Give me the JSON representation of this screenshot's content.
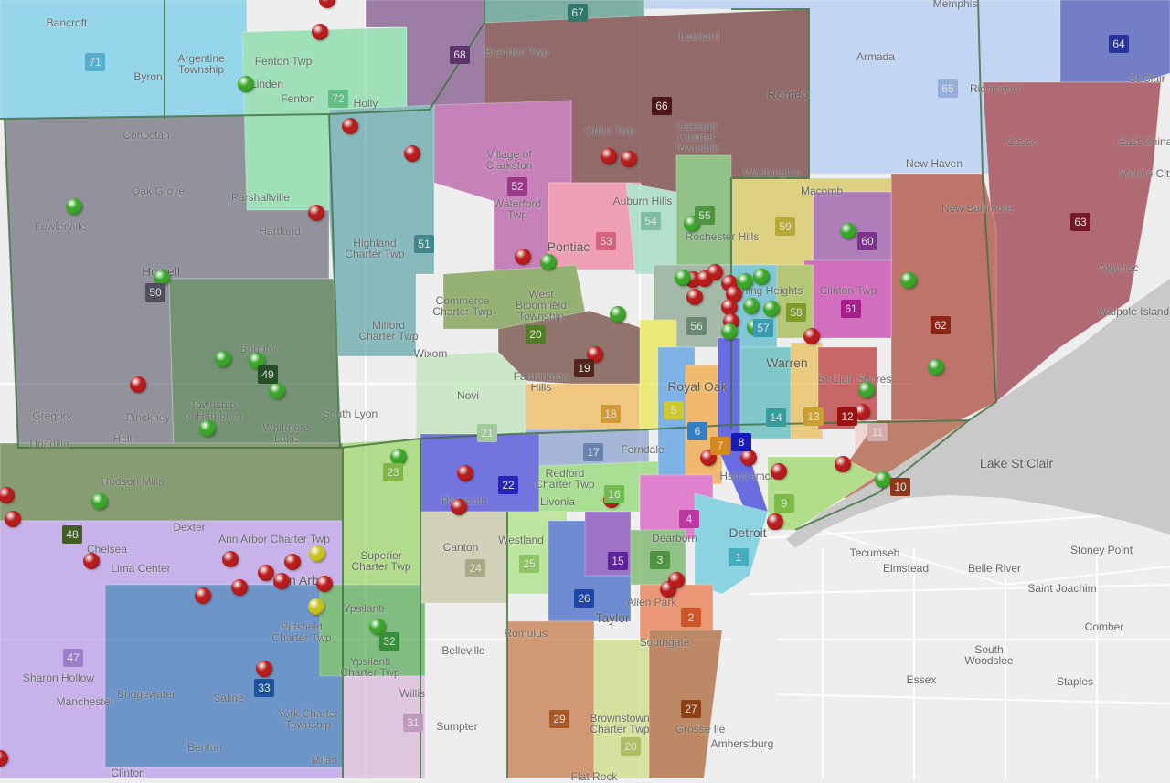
{
  "map": {
    "lake_color": "#c9c9c9",
    "land_color": "#eeeeee",
    "county_border_color": "#3f6f3f",
    "marker_colors": {
      "red": "#b81c1c",
      "green": "#3aa52a",
      "yellow": "#c9c21e"
    }
  },
  "districts": [
    {
      "num": "1",
      "color": "#4fc3d9"
    },
    {
      "num": "2",
      "color": "#e8622c"
    },
    {
      "num": "3",
      "color": "#5aa84a"
    },
    {
      "num": "4",
      "color": "#d63fb8"
    },
    {
      "num": "5",
      "color": "#e8e630"
    },
    {
      "num": "6",
      "color": "#3b8fe0"
    },
    {
      "num": "7",
      "color": "#f29a1f"
    },
    {
      "num": "8",
      "color": "#1a1fd6"
    },
    {
      "num": "9",
      "color": "#8fd44f"
    },
    {
      "num": "10",
      "color": "#a0401c"
    },
    {
      "num": "11",
      "color": "#f2c4c4"
    },
    {
      "num": "12",
      "color": "#b01515"
    },
    {
      "num": "13",
      "color": "#e8b53a"
    },
    {
      "num": "14",
      "color": "#3fb0b0"
    },
    {
      "num": "15",
      "color": "#6a28b0"
    },
    {
      "num": "16",
      "color": "#7fd65a"
    },
    {
      "num": "17",
      "color": "#7a95c8"
    },
    {
      "num": "18",
      "color": "#f0b040"
    },
    {
      "num": "19",
      "color": "#5a2a20"
    },
    {
      "num": "20",
      "color": "#5f8f2a"
    },
    {
      "num": "21",
      "color": "#b8e4b0"
    },
    {
      "num": "22",
      "color": "#2a2ad6"
    },
    {
      "num": "23",
      "color": "#8fd050"
    },
    {
      "num": "24",
      "color": "#c0c098"
    },
    {
      "num": "25",
      "color": "#a0e070"
    },
    {
      "num": "26",
      "color": "#2050c0"
    },
    {
      "num": "27",
      "color": "#a04a14"
    },
    {
      "num": "28",
      "color": "#c8d870"
    },
    {
      "num": "29",
      "color": "#c0652a"
    },
    {
      "num": "31",
      "color": "#d8b0d8"
    },
    {
      "num": "32",
      "color": "#40a040"
    },
    {
      "num": "33",
      "color": "#2060b0"
    },
    {
      "num": "47",
      "color": "#b090e8"
    },
    {
      "num": "48",
      "color": "#4a6a2a"
    },
    {
      "num": "49",
      "color": "#2a5a2a"
    },
    {
      "num": "50",
      "color": "#5a5a6a"
    },
    {
      "num": "51",
      "color": "#4a9aa0"
    },
    {
      "num": "52",
      "color": "#b0409a"
    },
    {
      "num": "53",
      "color": "#f07090"
    },
    {
      "num": "54",
      "color": "#90d8b8"
    },
    {
      "num": "55",
      "color": "#5aa84a"
    },
    {
      "num": "56",
      "color": "#7a9a80"
    },
    {
      "num": "57",
      "color": "#40b0c8"
    },
    {
      "num": "58",
      "color": "#90b030"
    },
    {
      "num": "59",
      "color": "#d0c040"
    },
    {
      "num": "60",
      "color": "#8a3a9a"
    },
    {
      "num": "61",
      "color": "#c020a0"
    },
    {
      "num": "62",
      "color": "#a02a1a"
    },
    {
      "num": "63",
      "color": "#8a1a2a"
    },
    {
      "num": "64",
      "color": "#2a3ab0"
    },
    {
      "num": "65",
      "color": "#a8c8f8"
    },
    {
      "num": "66",
      "color": "#5a1a1a"
    },
    {
      "num": "67",
      "color": "#3a8a7a"
    },
    {
      "num": "68",
      "color": "#6a3a7a"
    },
    {
      "num": "71",
      "color": "#60c8e8"
    },
    {
      "num": "72",
      "color": "#70d898"
    }
  ],
  "places": [
    "Bancroft",
    "Argentine\nTownship",
    "Byron",
    "Fenton Twp",
    "Holly",
    "Brandon Twp",
    "Leonard",
    "Armada",
    "Romeo",
    "St Clair",
    "Cohoctah",
    "Village of\nClarkston",
    "Orion Twp",
    "Oakland\nCharter\nTownship",
    "East China",
    "Casco",
    "Marine City",
    "Oak Grove",
    "Parshallville",
    "Washington",
    "Macomb",
    "New Haven",
    "Waterford\nTwp",
    "Fowlerville",
    "Hartland",
    "Highland\nCharter Twp",
    "Auburn Hills",
    "Rochester Hills",
    "New Baltimore",
    "Pontiac",
    "Algonac",
    "Howell",
    "Commerce\nCharter Twp",
    "West\nBloomfield\nTownship",
    "Sterling Heights",
    "Clinton Twp",
    "Walpole Island",
    "Milford\nCharter Twp",
    "Brighton",
    "Wixom",
    "Farmington\nHills",
    "Warren",
    "St Clair Shores",
    "Royal Oak",
    "Novi",
    "Gregory",
    "Pinckney",
    "Township\nof Hamburg",
    "Whitmore\nLake",
    "South Lyon",
    "Hell",
    "Unadilla",
    "Ferndale",
    "Lake St Clair",
    "Redford\nCharter Twp",
    "Hamtramck",
    "Hudson Mills",
    "Plymouth",
    "Livonia",
    "Detroit",
    "Dexter",
    "Ann Arbor Charter Twp",
    "Chelsea",
    "Canton",
    "Westland",
    "Dearborn",
    "Superior\nCharter Twp",
    "Lima Center",
    "Tecumseh",
    "Elmstead",
    "Belle River",
    "Stoney Point",
    "Saint Joachim",
    "Ann Arbor",
    "Ypsilanti",
    "Allen Park",
    "Taylor",
    "Romulus",
    "Comber",
    "Southgate",
    "Belleville",
    "Pittsfield\nCharter Twp",
    "Ypsilanti\nCharter Twp",
    "Sharon Hollow",
    "South\nWoodslee",
    "Essex",
    "Staples",
    "Manchester",
    "Bridgewater",
    "Saline",
    "York Charter\nTownship",
    "Willis",
    "Sumpter",
    "Brownstown\nCharter Twp",
    "Grosse Ile",
    "Amherstburg",
    "Benton",
    "Flat Rock",
    "Clinton",
    "Milan",
    "Linden",
    "Fenton",
    "Richmond",
    "Memphis"
  ]
}
